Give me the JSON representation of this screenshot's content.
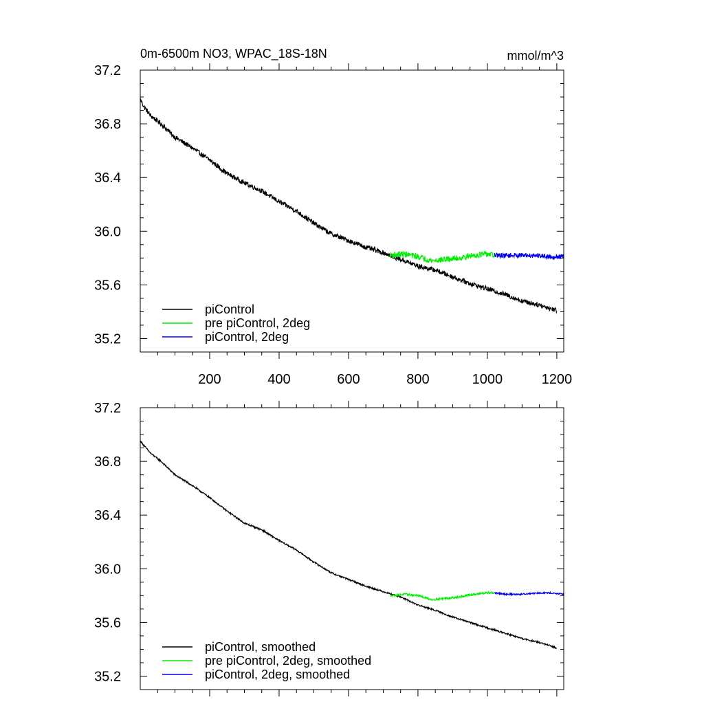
{
  "chart_data": [
    {
      "type": "line",
      "title": "0m-6500m NO3, WPAC_18S-18N",
      "units": "mmol/m^3",
      "xlim": [
        0,
        1220
      ],
      "ylim": [
        35.1,
        37.2
      ],
      "y_ticks": [
        35.2,
        35.6,
        36.0,
        36.4,
        36.8,
        37.2
      ],
      "y_tick_labels": [
        "35.2",
        "35.6",
        "36.0",
        "36.4",
        "36.8",
        "37.2"
      ],
      "x_ticks": [
        200,
        400,
        600,
        800,
        1000,
        1200
      ],
      "x_tick_labels": [
        "200",
        "400",
        "600",
        "800",
        "1000",
        "1200"
      ],
      "legend_position": "bottom-left",
      "grid": false,
      "series": [
        {
          "name": "piControl",
          "color": "#000000",
          "noise": 0.018,
          "x": [
            1,
            10,
            30,
            60,
            100,
            150,
            200,
            250,
            300,
            350,
            400,
            450,
            500,
            550,
            600,
            650,
            700,
            750,
            800,
            850,
            900,
            950,
            1000,
            1050,
            1100,
            1150,
            1200
          ],
          "y": [
            36.98,
            36.93,
            36.86,
            36.8,
            36.7,
            36.62,
            36.53,
            36.43,
            36.36,
            36.3,
            36.22,
            36.15,
            36.06,
            35.98,
            35.93,
            35.88,
            35.84,
            35.79,
            35.74,
            35.71,
            35.66,
            35.61,
            35.57,
            35.53,
            35.48,
            35.45,
            35.41
          ]
        },
        {
          "name": "pre piControl, 2deg",
          "color": "#00ee00",
          "noise": 0.022,
          "x": [
            720,
            760,
            800,
            840,
            880,
            920,
            960,
            1000,
            1020
          ],
          "y": [
            35.82,
            35.83,
            35.81,
            35.78,
            35.79,
            35.8,
            35.82,
            35.83,
            35.82
          ]
        },
        {
          "name": "piControl, 2deg",
          "color": "#0000ee",
          "noise": 0.018,
          "x": [
            1020,
            1060,
            1100,
            1140,
            1180,
            1220
          ],
          "y": [
            35.82,
            35.82,
            35.82,
            35.82,
            35.81,
            35.81
          ]
        }
      ]
    },
    {
      "type": "line",
      "xlim": [
        0,
        1220
      ],
      "ylim": [
        35.1,
        37.2
      ],
      "y_ticks": [
        35.2,
        35.6,
        36.0,
        36.4,
        36.8,
        37.2
      ],
      "y_tick_labels": [
        "35.2",
        "35.6",
        "36.0",
        "36.4",
        "36.8",
        "37.2"
      ],
      "x_ticks": [
        200,
        400,
        600,
        800,
        1000,
        1200
      ],
      "legend_position": "bottom-left",
      "grid": false,
      "series": [
        {
          "name": "piControl, smoothed",
          "color": "#000000",
          "noise": 0.006,
          "x": [
            1,
            10,
            30,
            60,
            100,
            150,
            200,
            250,
            300,
            350,
            400,
            450,
            500,
            550,
            600,
            650,
            700,
            750,
            800,
            850,
            900,
            950,
            1000,
            1050,
            1100,
            1150,
            1200
          ],
          "y": [
            36.95,
            36.92,
            36.86,
            36.8,
            36.7,
            36.62,
            36.53,
            36.43,
            36.34,
            36.29,
            36.21,
            36.14,
            36.05,
            35.97,
            35.92,
            35.87,
            35.83,
            35.79,
            35.73,
            35.69,
            35.64,
            35.6,
            35.56,
            35.52,
            35.48,
            35.45,
            35.41
          ]
        },
        {
          "name": "pre piControl, 2deg, smoothed",
          "color": "#00ee00",
          "noise": 0.008,
          "x": [
            720,
            760,
            800,
            840,
            880,
            920,
            960,
            1000,
            1020
          ],
          "y": [
            35.8,
            35.81,
            35.8,
            35.77,
            35.78,
            35.79,
            35.81,
            35.82,
            35.82
          ]
        },
        {
          "name": "piControl, 2deg, smoothed",
          "color": "#0000ee",
          "noise": 0.006,
          "x": [
            1020,
            1060,
            1100,
            1140,
            1180,
            1220
          ],
          "y": [
            35.82,
            35.81,
            35.81,
            35.82,
            35.82,
            35.81
          ]
        }
      ]
    }
  ]
}
